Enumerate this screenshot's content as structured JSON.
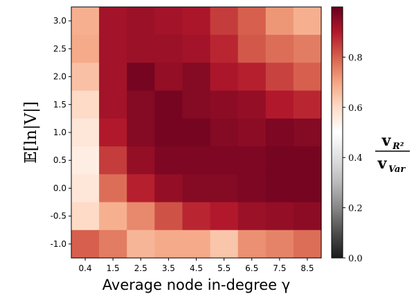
{
  "chart_data": {
    "type": "heatmap",
    "xlabel": "Average node in-degree γ",
    "ylabel": "𝔼[ln|V|]",
    "x_categories": [
      "0.4",
      "1.5",
      "2.5",
      "3.5",
      "4.5",
      "5.5",
      "6.5",
      "7.5",
      "8.5"
    ],
    "y_categories": [
      "3.0",
      "2.5",
      "2.0",
      "1.5",
      "1.0",
      "0.5",
      "0.0",
      "-0.5",
      "-1.0"
    ],
    "values": [
      [
        0.68,
        0.92,
        0.93,
        0.92,
        0.91,
        0.85,
        0.8,
        0.72,
        0.68
      ],
      [
        0.69,
        0.92,
        0.93,
        0.93,
        0.92,
        0.88,
        0.81,
        0.78,
        0.76
      ],
      [
        0.65,
        0.92,
        0.98,
        0.94,
        0.96,
        0.91,
        0.89,
        0.84,
        0.8
      ],
      [
        0.6,
        0.92,
        0.96,
        0.98,
        0.96,
        0.95,
        0.94,
        0.9,
        0.88
      ],
      [
        0.57,
        0.9,
        0.96,
        0.98,
        0.98,
        0.96,
        0.95,
        0.97,
        0.96
      ],
      [
        0.55,
        0.85,
        0.94,
        0.97,
        0.97,
        0.97,
        0.97,
        0.98,
        0.98
      ],
      [
        0.57,
        0.78,
        0.89,
        0.94,
        0.96,
        0.96,
        0.97,
        0.98,
        0.98
      ],
      [
        0.6,
        0.68,
        0.74,
        0.82,
        0.88,
        0.9,
        0.93,
        0.94,
        0.95
      ],
      [
        0.8,
        0.76,
        0.67,
        0.69,
        0.69,
        0.64,
        0.73,
        0.75,
        0.78
      ]
    ],
    "value_range": [
      0.0,
      1.0
    ],
    "colorbar": {
      "label_numerator": "v",
      "label_numerator_sub": "R²",
      "label_denominator": "v",
      "label_denominator_sub": "Var",
      "ticks": [
        0.0,
        0.2,
        0.4,
        0.6,
        0.8
      ],
      "tick_labels": [
        "0.0",
        "0.2",
        "0.4",
        "0.6",
        "0.8"
      ]
    },
    "colormap": "RdGy_r",
    "colormap_stops": [
      "#1a1a1a",
      "#4d4d4d",
      "#878787",
      "#bababa",
      "#e0e0e0",
      "#ffffff",
      "#fddbc7",
      "#f4a582",
      "#d6604d",
      "#b2182b",
      "#67001f"
    ]
  }
}
